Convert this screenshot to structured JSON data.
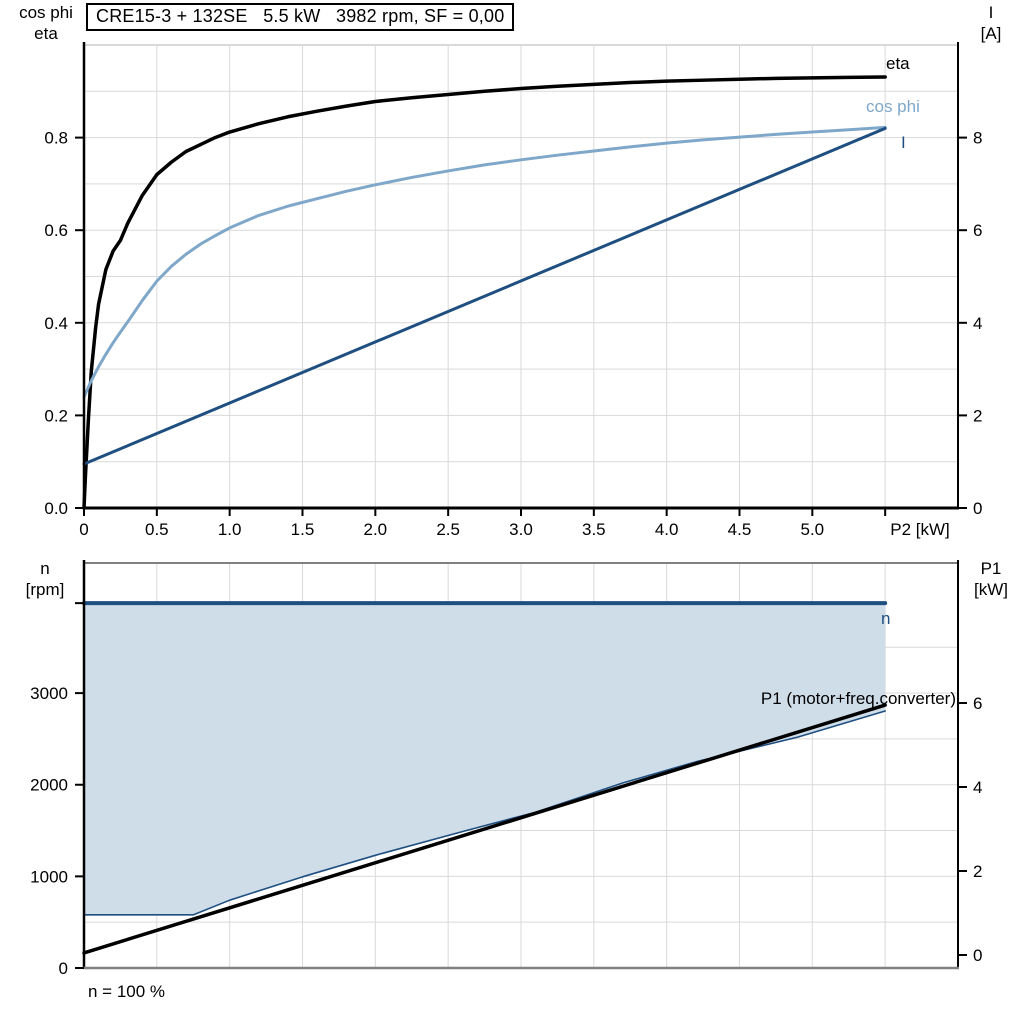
{
  "colors": {
    "black": "#000000",
    "dark_blue": "#1f4f80",
    "light_blue": "#7fa7c9",
    "area_fill": "#cfdde9",
    "gridline": "#d9d9d9",
    "border_gray": "#808080"
  },
  "chart_data": [
    {
      "type": "line",
      "title": "CRE15-3 + 132SE   5.5 kW   3982 rpm, SF = 0,00",
      "xlabel": "P2 [kW]",
      "xlim": [
        0,
        6
      ],
      "x_grid_step": 0.5,
      "x_ticks": [
        0,
        0.5,
        1.0,
        1.5,
        2.0,
        2.5,
        3.0,
        3.5,
        4.0,
        4.5,
        5.0,
        5.5
      ],
      "x_tick_labels": [
        "0",
        "0.5",
        "1.0",
        "1.5",
        "2.0",
        "2.5",
        "3.0",
        "3.5",
        "4.0",
        "4.5",
        "5.0",
        ""
      ],
      "y_left": {
        "label_lines": [
          "cos phi",
          "eta"
        ],
        "lim": [
          0,
          1.0
        ],
        "grid_step": 0.1,
        "ticks": [
          0.0,
          0.2,
          0.4,
          0.6,
          0.8
        ],
        "tick_labels": [
          "0.0",
          "0.2",
          "0.4",
          "0.6",
          "0.8"
        ]
      },
      "y_right": {
        "label_lines": [
          "I",
          "[A]"
        ],
        "lim": [
          0,
          10
        ],
        "ticks": [
          0,
          2,
          4,
          6,
          8
        ],
        "tick_labels": [
          "0",
          "2",
          "4",
          "6",
          "8"
        ]
      },
      "series": [
        {
          "name": "eta",
          "label": "eta",
          "axis": "left",
          "color": "#000000",
          "width": 3.5,
          "points": [
            [
              0,
              0
            ],
            [
              0.01,
              0.07
            ],
            [
              0.03,
              0.19
            ],
            [
              0.05,
              0.295
            ],
            [
              0.08,
              0.39
            ],
            [
              0.1,
              0.44
            ],
            [
              0.15,
              0.515
            ],
            [
              0.2,
              0.555
            ],
            [
              0.25,
              0.578
            ],
            [
              0.3,
              0.615
            ],
            [
              0.4,
              0.675
            ],
            [
              0.5,
              0.72
            ],
            [
              0.6,
              0.747
            ],
            [
              0.7,
              0.77
            ],
            [
              0.8,
              0.785
            ],
            [
              0.9,
              0.8
            ],
            [
              1.0,
              0.812
            ],
            [
              1.2,
              0.83
            ],
            [
              1.4,
              0.845
            ],
            [
              1.6,
              0.857
            ],
            [
              1.8,
              0.868
            ],
            [
              2.0,
              0.878
            ],
            [
              2.25,
              0.886
            ],
            [
              2.5,
              0.893
            ],
            [
              2.75,
              0.9
            ],
            [
              3.0,
              0.906
            ],
            [
              3.25,
              0.911
            ],
            [
              3.5,
              0.915
            ],
            [
              3.75,
              0.919
            ],
            [
              4.0,
              0.922
            ],
            [
              4.25,
              0.924
            ],
            [
              4.5,
              0.926
            ],
            [
              4.75,
              0.928
            ],
            [
              5.0,
              0.929
            ],
            [
              5.25,
              0.93
            ],
            [
              5.5,
              0.931
            ]
          ]
        },
        {
          "name": "cos phi",
          "label": "cos phi",
          "axis": "left",
          "color": "#7fa7c9",
          "width": 3,
          "points": [
            [
              0,
              0.24
            ],
            [
              0.05,
              0.275
            ],
            [
              0.1,
              0.305
            ],
            [
              0.15,
              0.332
            ],
            [
              0.2,
              0.357
            ],
            [
              0.25,
              0.38
            ],
            [
              0.3,
              0.402
            ],
            [
              0.4,
              0.448
            ],
            [
              0.5,
              0.49
            ],
            [
              0.6,
              0.522
            ],
            [
              0.7,
              0.548
            ],
            [
              0.8,
              0.57
            ],
            [
              0.9,
              0.588
            ],
            [
              1.0,
              0.605
            ],
            [
              1.2,
              0.632
            ],
            [
              1.4,
              0.652
            ],
            [
              1.6,
              0.668
            ],
            [
              1.8,
              0.684
            ],
            [
              2.0,
              0.698
            ],
            [
              2.25,
              0.714
            ],
            [
              2.5,
              0.728
            ],
            [
              2.75,
              0.741
            ],
            [
              3.0,
              0.752
            ],
            [
              3.25,
              0.762
            ],
            [
              3.5,
              0.771
            ],
            [
              3.75,
              0.78
            ],
            [
              4.0,
              0.788
            ],
            [
              4.25,
              0.795
            ],
            [
              4.5,
              0.801
            ],
            [
              4.75,
              0.807
            ],
            [
              5.0,
              0.812
            ],
            [
              5.25,
              0.817
            ],
            [
              5.5,
              0.822
            ]
          ]
        },
        {
          "name": "I",
          "label": "I",
          "axis": "right",
          "color": "#1f4f80",
          "width": 3,
          "points": [
            [
              0,
              0.95
            ],
            [
              5.5,
              8.2
            ]
          ]
        }
      ]
    },
    {
      "type": "line",
      "xlabel": "",
      "xlim": [
        0,
        6
      ],
      "x_grid_step": 0.5,
      "x_ticks": [],
      "x_tick_labels": [],
      "y_left": {
        "label_lines": [
          "n",
          "[rpm]"
        ],
        "lim": [
          0,
          4420
        ],
        "grid_step": 500,
        "grid_max": 3500,
        "ticks": [
          0,
          1000,
          2000,
          3000
        ],
        "tick_labels": [
          "0",
          "1000",
          "2000",
          "3000"
        ]
      },
      "y_right": {
        "label_lines": [
          "P1",
          "[kW]"
        ],
        "lim": [
          0,
          9.3
        ],
        "ticks": [
          0,
          2,
          4,
          6
        ],
        "tick_labels": [
          "0",
          "2",
          "4",
          "6"
        ]
      },
      "series": [
        {
          "name": "n max",
          "label": "n",
          "axis": "left",
          "color": "#1f4f80",
          "width": 4,
          "points": [
            [
              0,
              3982
            ],
            [
              5.5,
              3982
            ]
          ]
        },
        {
          "name": "n min",
          "label": "",
          "axis": "left",
          "color": "#1f4f80",
          "width": 1.6,
          "points": [
            [
              0,
              580
            ],
            [
              0.75,
              580
            ],
            [
              1.0,
              740
            ],
            [
              1.5,
              995
            ],
            [
              2.0,
              1230
            ],
            [
              2.6,
              1490
            ],
            [
              3.1,
              1700
            ],
            [
              3.7,
              2020
            ],
            [
              4.2,
              2250
            ],
            [
              4.9,
              2520
            ],
            [
              5.5,
              2805
            ]
          ]
        },
        {
          "name": "P1",
          "label": "P1 (motor+freq.converter)",
          "axis": "right",
          "color": "#000000",
          "width": 3.5,
          "points": [
            [
              0,
              0.05
            ],
            [
              5.5,
              5.95
            ]
          ]
        }
      ],
      "area": {
        "between": [
          "n max",
          "n min"
        ],
        "color": "#cfdde9"
      },
      "footnote": "n = 100 %"
    }
  ]
}
